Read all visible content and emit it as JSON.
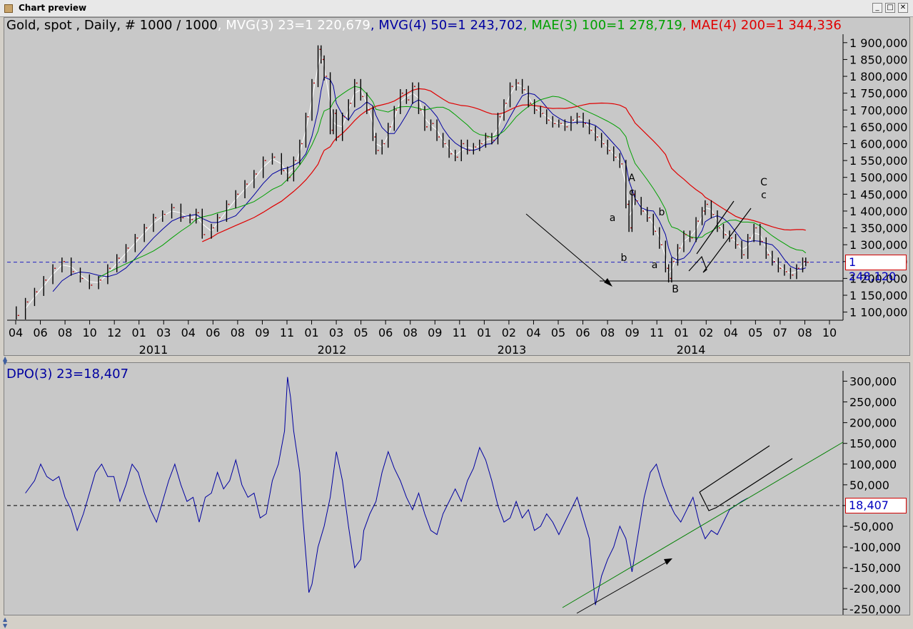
{
  "window": {
    "title": "Chart preview",
    "buttons": {
      "minimize": "_",
      "maximize": "□",
      "close": "✕"
    }
  },
  "legend_top": [
    {
      "text": "Gold, spot , Daily, # 1000 / 1000",
      "color": "#000000"
    },
    {
      "text": ", MVG(3) 23=1 220,679",
      "color": "#ffffff"
    },
    {
      "text": ", MVG(4) 50=1 243,702",
      "color": "#0000a0"
    },
    {
      "text": ", MAE(3) 100=1 278,719",
      "color": "#00a000"
    },
    {
      "text": ", MAE(4) 200=1 344,336",
      "color": "#e00000"
    }
  ],
  "legend_bottom": {
    "text": "DPO(3) 23=18,407",
    "color": "#0000a0"
  },
  "price_marker": "1 248,120",
  "dpo_marker": "18,407",
  "chart_data": [
    {
      "type": "line",
      "title": "Gold, spot , Daily, # 1000 / 1000",
      "x_ticks": [
        "04",
        "06",
        "08",
        "10",
        "12",
        "01",
        "03",
        "04",
        "06",
        "08",
        "09",
        "11",
        "01",
        "03",
        "05",
        "06",
        "08",
        "09",
        "11",
        "01",
        "02",
        "04",
        "05",
        "06",
        "08",
        "09",
        "11",
        "01",
        "02",
        "04",
        "05",
        "07",
        "08",
        "10"
      ],
      "year_labels": [
        "2011",
        "2012",
        "2013",
        "2014"
      ],
      "y_ticks": [
        "1 900,000",
        "1 850,000",
        "1 800,000",
        "1 750,000",
        "1 700,000",
        "1 650,000",
        "1 600,000",
        "1 550,000",
        "1 500,000",
        "1 450,000",
        "1 400,000",
        "1 350,000",
        "1 300,000",
        "1 250,000",
        "1 200,000",
        "1 150,000",
        "1 100,000"
      ],
      "ylim": [
        1078,
        1925
      ],
      "reference_line": 1248.12,
      "wave_labels": [
        "A",
        "c",
        "a",
        "b",
        "b",
        "a",
        "B",
        "C",
        "c"
      ],
      "series": [
        {
          "name": "Gold, spot",
          "color": "#000000",
          "points": [
            [
              0,
              1105
            ],
            [
              3,
              1090
            ],
            [
              6,
              1130
            ],
            [
              9,
              1160
            ],
            [
              12,
              1195
            ],
            [
              15,
              1230
            ],
            [
              18,
              1250
            ],
            [
              21,
              1220
            ],
            [
              24,
              1200
            ],
            [
              27,
              1180
            ],
            [
              30,
              1195
            ],
            [
              33,
              1230
            ],
            [
              36,
              1260
            ],
            [
              39,
              1290
            ],
            [
              42,
              1320
            ],
            [
              45,
              1350
            ],
            [
              48,
              1380
            ],
            [
              51,
              1390
            ],
            [
              54,
              1410
            ],
            [
              57,
              1380
            ],
            [
              60,
              1375
            ],
            [
              62,
              1395
            ],
            [
              64,
              1330
            ],
            [
              67,
              1350
            ],
            [
              69,
              1380
            ],
            [
              72,
              1420
            ],
            [
              75,
              1450
            ],
            [
              78,
              1480
            ],
            [
              81,
              1510
            ],
            [
              84,
              1550
            ],
            [
              87,
              1560
            ],
            [
              90,
              1520
            ],
            [
              92,
              1500
            ],
            [
              94,
              1550
            ],
            [
              96,
              1600
            ],
            [
              98,
              1680
            ],
            [
              100,
              1780
            ],
            [
              102,
              1880
            ],
            [
              103,
              1850
            ],
            [
              104,
              1800
            ],
            [
              106,
              1640
            ],
            [
              107,
              1690
            ],
            [
              108,
              1620
            ],
            [
              110,
              1680
            ],
            [
              112,
              1720
            ],
            [
              114,
              1780
            ],
            [
              116,
              1740
            ],
            [
              118,
              1700
            ],
            [
              120,
              1620
            ],
            [
              121,
              1580
            ],
            [
              123,
              1600
            ],
            [
              125,
              1650
            ],
            [
              127,
              1700
            ],
            [
              129,
              1750
            ],
            [
              131,
              1730
            ],
            [
              133,
              1770
            ],
            [
              135,
              1700
            ],
            [
              137,
              1650
            ],
            [
              139,
              1660
            ],
            [
              141,
              1620
            ],
            [
              143,
              1600
            ],
            [
              145,
              1570
            ],
            [
              147,
              1560
            ],
            [
              149,
              1600
            ],
            [
              151,
              1580
            ],
            [
              153,
              1590
            ],
            [
              155,
              1600
            ],
            [
              157,
              1620
            ],
            [
              159,
              1610
            ],
            [
              161,
              1680
            ],
            [
              163,
              1720
            ],
            [
              165,
              1770
            ],
            [
              167,
              1780
            ],
            [
              169,
              1760
            ],
            [
              171,
              1720
            ],
            [
              173,
              1700
            ],
            [
              175,
              1690
            ],
            [
              177,
              1670
            ],
            [
              179,
              1660
            ],
            [
              181,
              1660
            ],
            [
              183,
              1650
            ],
            [
              185,
              1670
            ],
            [
              187,
              1680
            ],
            [
              189,
              1660
            ],
            [
              191,
              1640
            ],
            [
              193,
              1620
            ],
            [
              195,
              1600
            ],
            [
              197,
              1580
            ],
            [
              199,
              1560
            ],
            [
              201,
              1540
            ],
            [
              203,
              1420
            ],
            [
              204,
              1350
            ],
            [
              205,
              1450
            ],
            [
              206,
              1430
            ],
            [
              208,
              1400
            ],
            [
              210,
              1380
            ],
            [
              212,
              1340
            ],
            [
              214,
              1300
            ],
            [
              216,
              1230
            ],
            [
              217,
              1200
            ],
            [
              218,
              1250
            ],
            [
              220,
              1290
            ],
            [
              222,
              1330
            ],
            [
              224,
              1320
            ],
            [
              226,
              1370
            ],
            [
              228,
              1400
            ],
            [
              229,
              1420
            ],
            [
              231,
              1390
            ],
            [
              233,
              1350
            ],
            [
              235,
              1330
            ],
            [
              237,
              1320
            ],
            [
              239,
              1300
            ],
            [
              241,
              1270
            ],
            [
              243,
              1320
            ],
            [
              245,
              1350
            ],
            [
              247,
              1310
            ],
            [
              249,
              1270
            ],
            [
              251,
              1250
            ],
            [
              253,
              1230
            ],
            [
              255,
              1220
            ],
            [
              257,
              1210
            ],
            [
              259,
              1230
            ],
            [
              261,
              1250
            ],
            [
              262,
              1248
            ]
          ]
        },
        {
          "name": "MVG(3) 23",
          "color": "#ffffff"
        },
        {
          "name": "MVG(4) 50",
          "color": "#0000a0"
        },
        {
          "name": "MAE(3) 100",
          "color": "#00a000"
        },
        {
          "name": "MAE(4) 200",
          "color": "#e00000"
        }
      ]
    },
    {
      "type": "line",
      "title": "DPO(3) 23=18,407",
      "y_ticks": [
        "300,000",
        "250,000",
        "200,000",
        "150,000",
        "100,000",
        "50,000",
        "0,000",
        "-50,000",
        "-100,000",
        "-150,000",
        "-200,000",
        "-250,000"
      ],
      "ylim": [
        -260,
        325
      ],
      "reference_line": 0,
      "series": [
        {
          "name": "DPO(3) 23",
          "color": "#0000a0",
          "points": [
            [
              6,
              30
            ],
            [
              9,
              60
            ],
            [
              11,
              100
            ],
            [
              13,
              70
            ],
            [
              15,
              60
            ],
            [
              17,
              70
            ],
            [
              19,
              20
            ],
            [
              21,
              -10
            ],
            [
              23,
              -60
            ],
            [
              25,
              -20
            ],
            [
              27,
              30
            ],
            [
              29,
              80
            ],
            [
              31,
              100
            ],
            [
              33,
              70
            ],
            [
              35,
              70
            ],
            [
              37,
              10
            ],
            [
              39,
              50
            ],
            [
              41,
              100
            ],
            [
              43,
              80
            ],
            [
              45,
              30
            ],
            [
              47,
              -10
            ],
            [
              49,
              -40
            ],
            [
              51,
              10
            ],
            [
              53,
              60
            ],
            [
              55,
              100
            ],
            [
              57,
              50
            ],
            [
              59,
              10
            ],
            [
              61,
              20
            ],
            [
              63,
              -40
            ],
            [
              65,
              20
            ],
            [
              67,
              30
            ],
            [
              69,
              80
            ],
            [
              71,
              40
            ],
            [
              73,
              60
            ],
            [
              75,
              110
            ],
            [
              77,
              50
            ],
            [
              79,
              20
            ],
            [
              81,
              30
            ],
            [
              83,
              -30
            ],
            [
              85,
              -20
            ],
            [
              87,
              60
            ],
            [
              89,
              100
            ],
            [
              91,
              180
            ],
            [
              92,
              310
            ],
            [
              93,
              260
            ],
            [
              94,
              180
            ],
            [
              96,
              80
            ],
            [
              97,
              -30
            ],
            [
              98,
              -120
            ],
            [
              99,
              -210
            ],
            [
              100,
              -190
            ],
            [
              102,
              -100
            ],
            [
              104,
              -50
            ],
            [
              106,
              20
            ],
            [
              108,
              130
            ],
            [
              110,
              60
            ],
            [
              112,
              -50
            ],
            [
              114,
              -150
            ],
            [
              116,
              -130
            ],
            [
              117,
              -60
            ],
            [
              119,
              -20
            ],
            [
              121,
              10
            ],
            [
              123,
              80
            ],
            [
              125,
              130
            ],
            [
              127,
              90
            ],
            [
              129,
              60
            ],
            [
              131,
              20
            ],
            [
              133,
              -10
            ],
            [
              135,
              30
            ],
            [
              137,
              -20
            ],
            [
              139,
              -60
            ],
            [
              141,
              -70
            ],
            [
              143,
              -20
            ],
            [
              145,
              10
            ],
            [
              147,
              40
            ],
            [
              149,
              10
            ],
            [
              151,
              60
            ],
            [
              153,
              90
            ],
            [
              155,
              140
            ],
            [
              157,
              110
            ],
            [
              159,
              60
            ],
            [
              161,
              0
            ],
            [
              163,
              -40
            ],
            [
              165,
              -30
            ],
            [
              167,
              10
            ],
            [
              169,
              -30
            ],
            [
              171,
              -10
            ],
            [
              173,
              -60
            ],
            [
              175,
              -50
            ],
            [
              177,
              -20
            ],
            [
              179,
              -40
            ],
            [
              181,
              -70
            ],
            [
              183,
              -40
            ],
            [
              185,
              -10
            ],
            [
              187,
              20
            ],
            [
              189,
              -30
            ],
            [
              191,
              -80
            ],
            [
              193,
              -240
            ],
            [
              195,
              -170
            ],
            [
              197,
              -130
            ],
            [
              199,
              -100
            ],
            [
              201,
              -50
            ],
            [
              203,
              -80
            ],
            [
              205,
              -160
            ],
            [
              207,
              -70
            ],
            [
              209,
              20
            ],
            [
              211,
              80
            ],
            [
              213,
              100
            ],
            [
              215,
              50
            ],
            [
              217,
              10
            ],
            [
              219,
              -20
            ],
            [
              221,
              -40
            ],
            [
              223,
              -10
            ],
            [
              225,
              20
            ],
            [
              227,
              -40
            ],
            [
              229,
              -80
            ],
            [
              231,
              -60
            ],
            [
              233,
              -70
            ],
            [
              235,
              -40
            ],
            [
              237,
              -10
            ],
            [
              239,
              0
            ],
            [
              241,
              10
            ],
            [
              243,
              18
            ]
          ]
        }
      ]
    }
  ]
}
